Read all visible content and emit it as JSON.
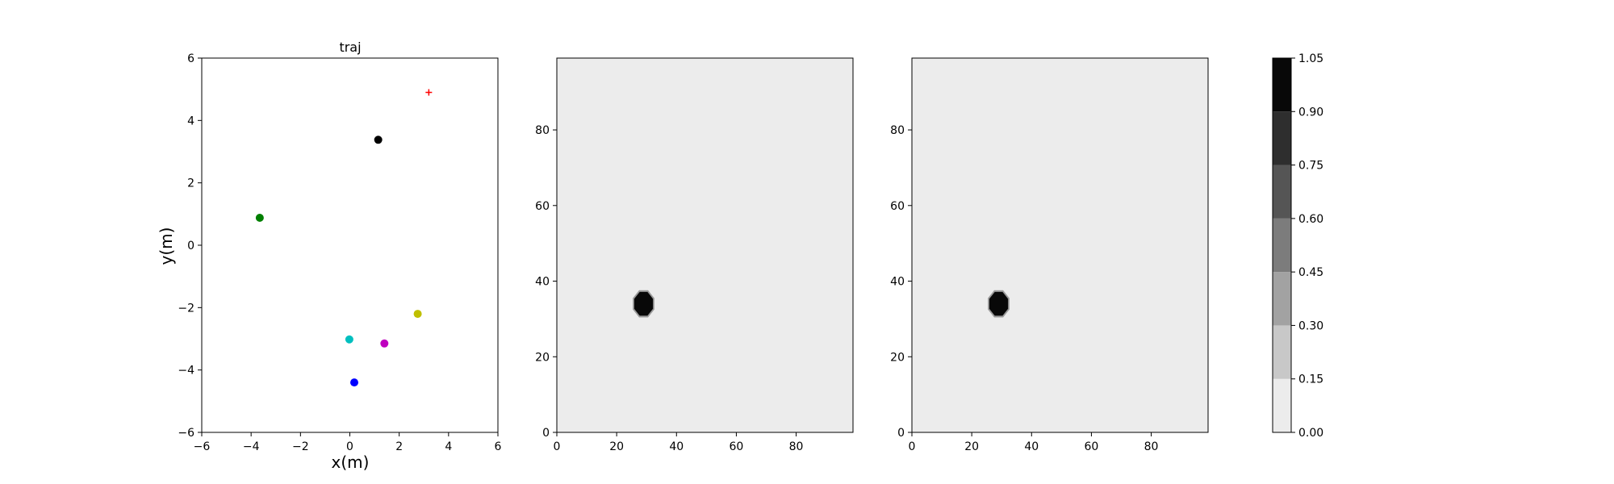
{
  "chart_data": [
    {
      "type": "scatter",
      "title": "traj",
      "xlabel": "x(m)",
      "ylabel": "y(m)",
      "xlim": [
        -6,
        6
      ],
      "ylim": [
        -6,
        6
      ],
      "xticks": [
        -6,
        -4,
        -2,
        0,
        2,
        4,
        6
      ],
      "yticks": [
        -6,
        -4,
        -2,
        0,
        2,
        4,
        6
      ],
      "xtick_labels": [
        "−6",
        "−4",
        "−2",
        "0",
        "2",
        "4",
        "6"
      ],
      "ytick_labels": [
        "−6",
        "−4",
        "−2",
        "0",
        "2",
        "4",
        "6"
      ],
      "grid": false,
      "points": [
        {
          "x": 1.15,
          "y": 3.38,
          "color": "#000000",
          "marker": "circle"
        },
        {
          "x": -3.65,
          "y": 0.88,
          "color": "#007f00",
          "marker": "circle"
        },
        {
          "x": 2.75,
          "y": -2.2,
          "color": "#bfbf00",
          "marker": "circle"
        },
        {
          "x": -0.02,
          "y": -3.02,
          "color": "#00bfbf",
          "marker": "circle"
        },
        {
          "x": 1.4,
          "y": -3.15,
          "color": "#bf00bf",
          "marker": "circle"
        },
        {
          "x": 0.18,
          "y": -4.4,
          "color": "#0000ff",
          "marker": "circle"
        },
        {
          "x": 3.2,
          "y": 4.9,
          "color": "#ff0000",
          "marker": "plus"
        }
      ]
    },
    {
      "type": "heatmap",
      "xlim": [
        0,
        99
      ],
      "ylim": [
        0,
        99
      ],
      "xticks": [
        0,
        20,
        40,
        60,
        80
      ],
      "yticks": [
        0,
        20,
        40,
        60,
        80
      ],
      "xtick_labels": [
        "0",
        "20",
        "40",
        "60",
        "80"
      ],
      "ytick_labels": [
        "0",
        "20",
        "40",
        "60",
        "80"
      ],
      "background_value": 0.05,
      "blob": {
        "center": [
          29,
          34
        ],
        "radius": 3.4,
        "value": 1.0
      }
    },
    {
      "type": "heatmap",
      "xlim": [
        0,
        99
      ],
      "ylim": [
        0,
        99
      ],
      "xticks": [
        0,
        20,
        40,
        60,
        80
      ],
      "yticks": [
        0,
        20,
        40,
        60,
        80
      ],
      "xtick_labels": [
        "0",
        "20",
        "40",
        "60",
        "80"
      ],
      "ytick_labels": [
        "0",
        "20",
        "40",
        "60",
        "80"
      ],
      "background_value": 0.05,
      "blob": {
        "center": [
          29,
          34
        ],
        "radius": 3.4,
        "value": 1.0
      }
    },
    {
      "type": "colorbar",
      "levels": [
        0.0,
        0.15,
        0.3,
        0.45,
        0.6,
        0.75,
        0.9,
        1.05
      ],
      "tick_labels": [
        "0.00",
        "0.15",
        "0.30",
        "0.45",
        "0.60",
        "0.75",
        "0.90",
        "1.05"
      ],
      "colors": [
        "#ececec",
        "#c8c8c8",
        "#a2a2a2",
        "#7c7c7c",
        "#555555",
        "#2e2e2e",
        "#080808"
      ]
    }
  ]
}
